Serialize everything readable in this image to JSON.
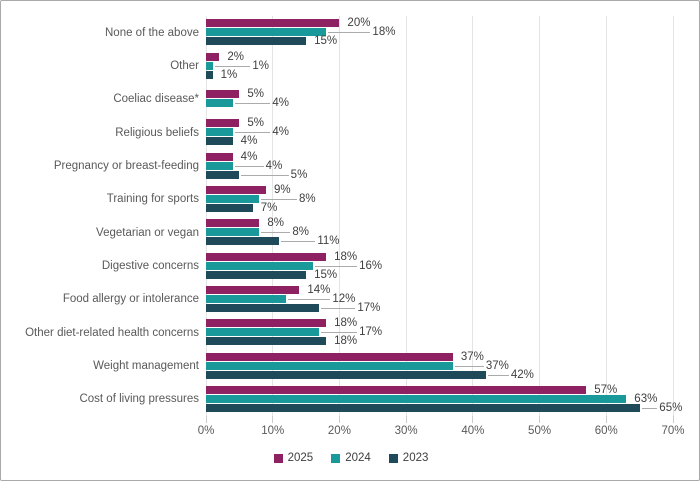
{
  "chart_data": {
    "type": "bar",
    "orientation": "horizontal",
    "title": "",
    "xlabel": "",
    "ylabel": "",
    "xlim": [
      0,
      70
    ],
    "x_ticks": [
      "0%",
      "10%",
      "20%",
      "30%",
      "40%",
      "50%",
      "60%",
      "70%"
    ],
    "grid": "vertical-only",
    "legend_position": "bottom-center",
    "value_label_suffix": "%",
    "categories": [
      "None of the above",
      "Other",
      "Coeliac disease*",
      "Religious beliefs",
      "Pregnancy or breast-feeding",
      "Training for sports",
      "Vegetarian or vegan",
      "Digestive concerns",
      "Food allergy or intolerance",
      "Other diet-related health concerns",
      "Weight management",
      "Cost of living pressures"
    ],
    "series": [
      {
        "name": "2025",
        "color": "#8e2162",
        "values": [
          20,
          2,
          5,
          5,
          4,
          9,
          8,
          18,
          14,
          18,
          37,
          57
        ]
      },
      {
        "name": "2024",
        "color": "#1a999b",
        "values": [
          18,
          1,
          4,
          4,
          4,
          8,
          8,
          16,
          12,
          17,
          37,
          63
        ]
      },
      {
        "name": "2023",
        "color": "#1f4a59",
        "values": [
          15,
          1,
          null,
          4,
          5,
          7,
          11,
          15,
          17,
          18,
          42,
          65
        ]
      }
    ]
  },
  "colors": {
    "gridline": "#e4e4e4",
    "tick_stub": "#cccccc",
    "leader_line": "#ababab",
    "category_text": "#595959",
    "value_text": "#3f3f3f",
    "border": "#a9a9a9"
  }
}
